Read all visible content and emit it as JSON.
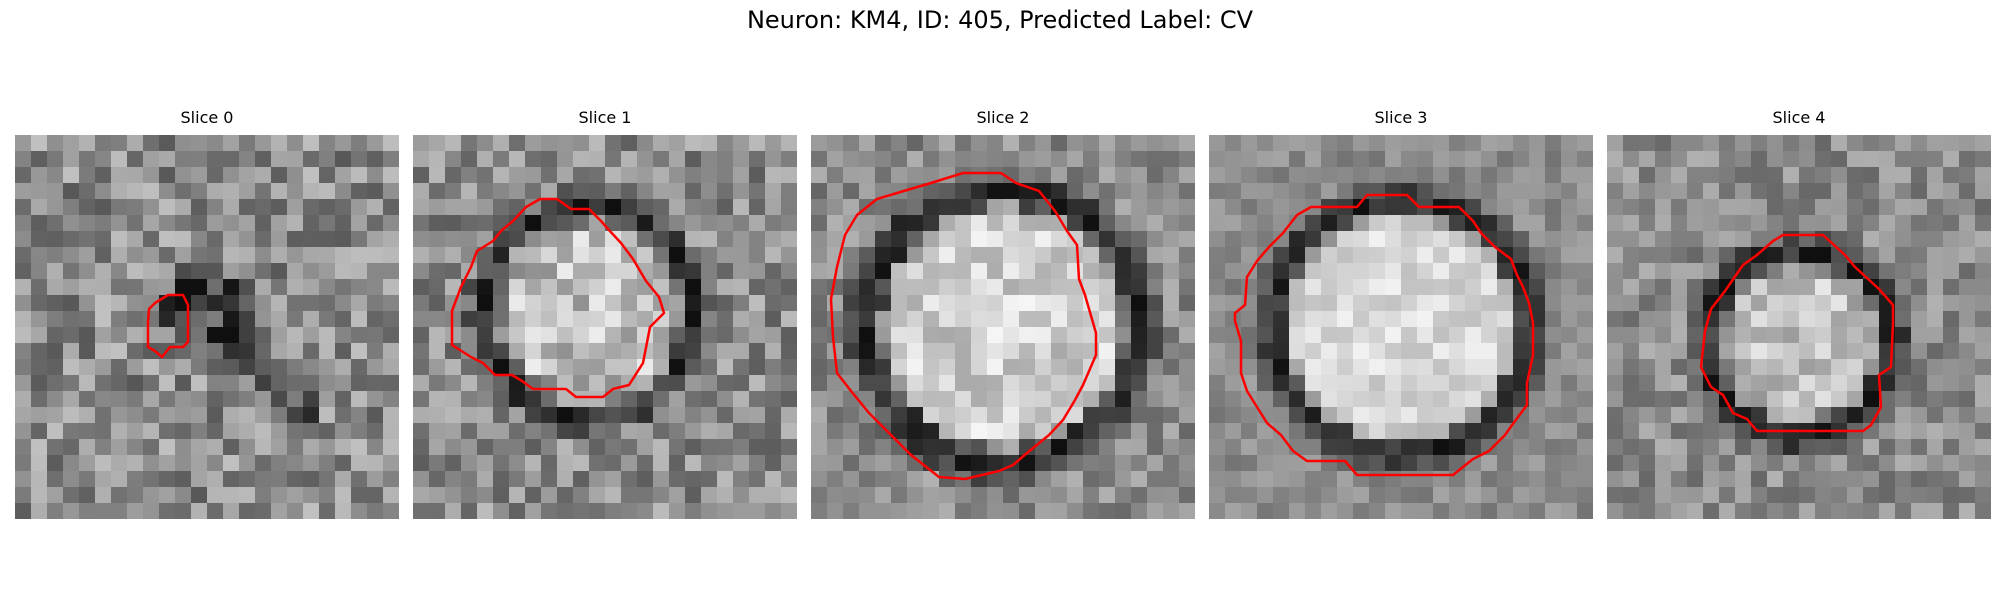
{
  "figure": {
    "title": "Neuron: KM4, ID: 405, Predicted Label: CV"
  },
  "panels": [
    {
      "title": "Slice 0"
    },
    {
      "title": "Slice 1"
    },
    {
      "title": "Slice 2"
    },
    {
      "title": "Slice 3"
    },
    {
      "title": "Slice 4"
    }
  ],
  "colors": {
    "contour": "#ff0000"
  }
}
